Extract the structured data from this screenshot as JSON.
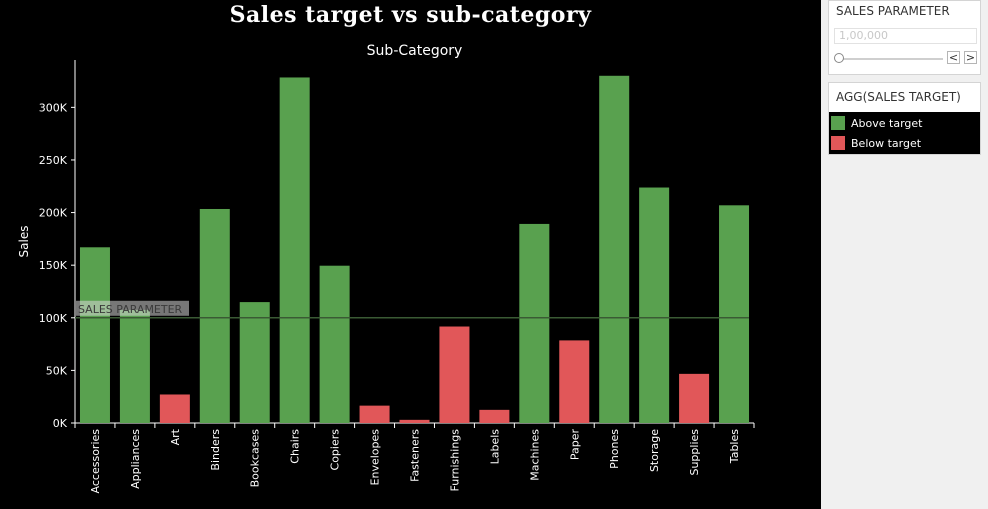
{
  "chart_data": {
    "type": "bar",
    "title": "Sales target vs sub-category",
    "column_header": "Sub-Category",
    "xlabel": "",
    "ylabel": "Sales",
    "categories": [
      "Accessories",
      "Appliances",
      "Art",
      "Binders",
      "Bookcases",
      "Chairs",
      "Copiers",
      "Envelopes",
      "Fasteners",
      "Furnishings",
      "Labels",
      "Machines",
      "Paper",
      "Phones",
      "Storage",
      "Supplies",
      "Tables"
    ],
    "values": [
      167000,
      107500,
      27100,
      203400,
      114900,
      328400,
      149500,
      16500,
      3000,
      91700,
      12500,
      189200,
      78500,
      330000,
      223800,
      46700,
      206900
    ],
    "status": [
      "Above target",
      "Above target",
      "Below target",
      "Above target",
      "Above target",
      "Above target",
      "Above target",
      "Below target",
      "Below target",
      "Below target",
      "Below target",
      "Above target",
      "Below target",
      "Above target",
      "Above target",
      "Below target",
      "Above target"
    ],
    "ylim": [
      0,
      345000
    ],
    "yticks": [
      0,
      50000,
      100000,
      150000,
      200000,
      250000,
      300000
    ],
    "ytick_labels": [
      "0K",
      "50K",
      "100K",
      "150K",
      "200K",
      "250K",
      "300K"
    ],
    "reference_line": {
      "label": "SALES PARAMETER",
      "value": 100000
    },
    "colors": {
      "Above target": "#59a14f",
      "Below target": "#e15759",
      "background": "#000000",
      "reference": "#3a5a34"
    },
    "grid": false
  },
  "parameter_control": {
    "title": "SALES PARAMETER",
    "value_text": "1,00,000",
    "prev": "<",
    "next": ">"
  },
  "legend": {
    "title": "AGG(SALES TARGET)",
    "items": [
      {
        "label": "Above target",
        "color": "#59a14f"
      },
      {
        "label": "Below target",
        "color": "#e15759"
      }
    ]
  }
}
